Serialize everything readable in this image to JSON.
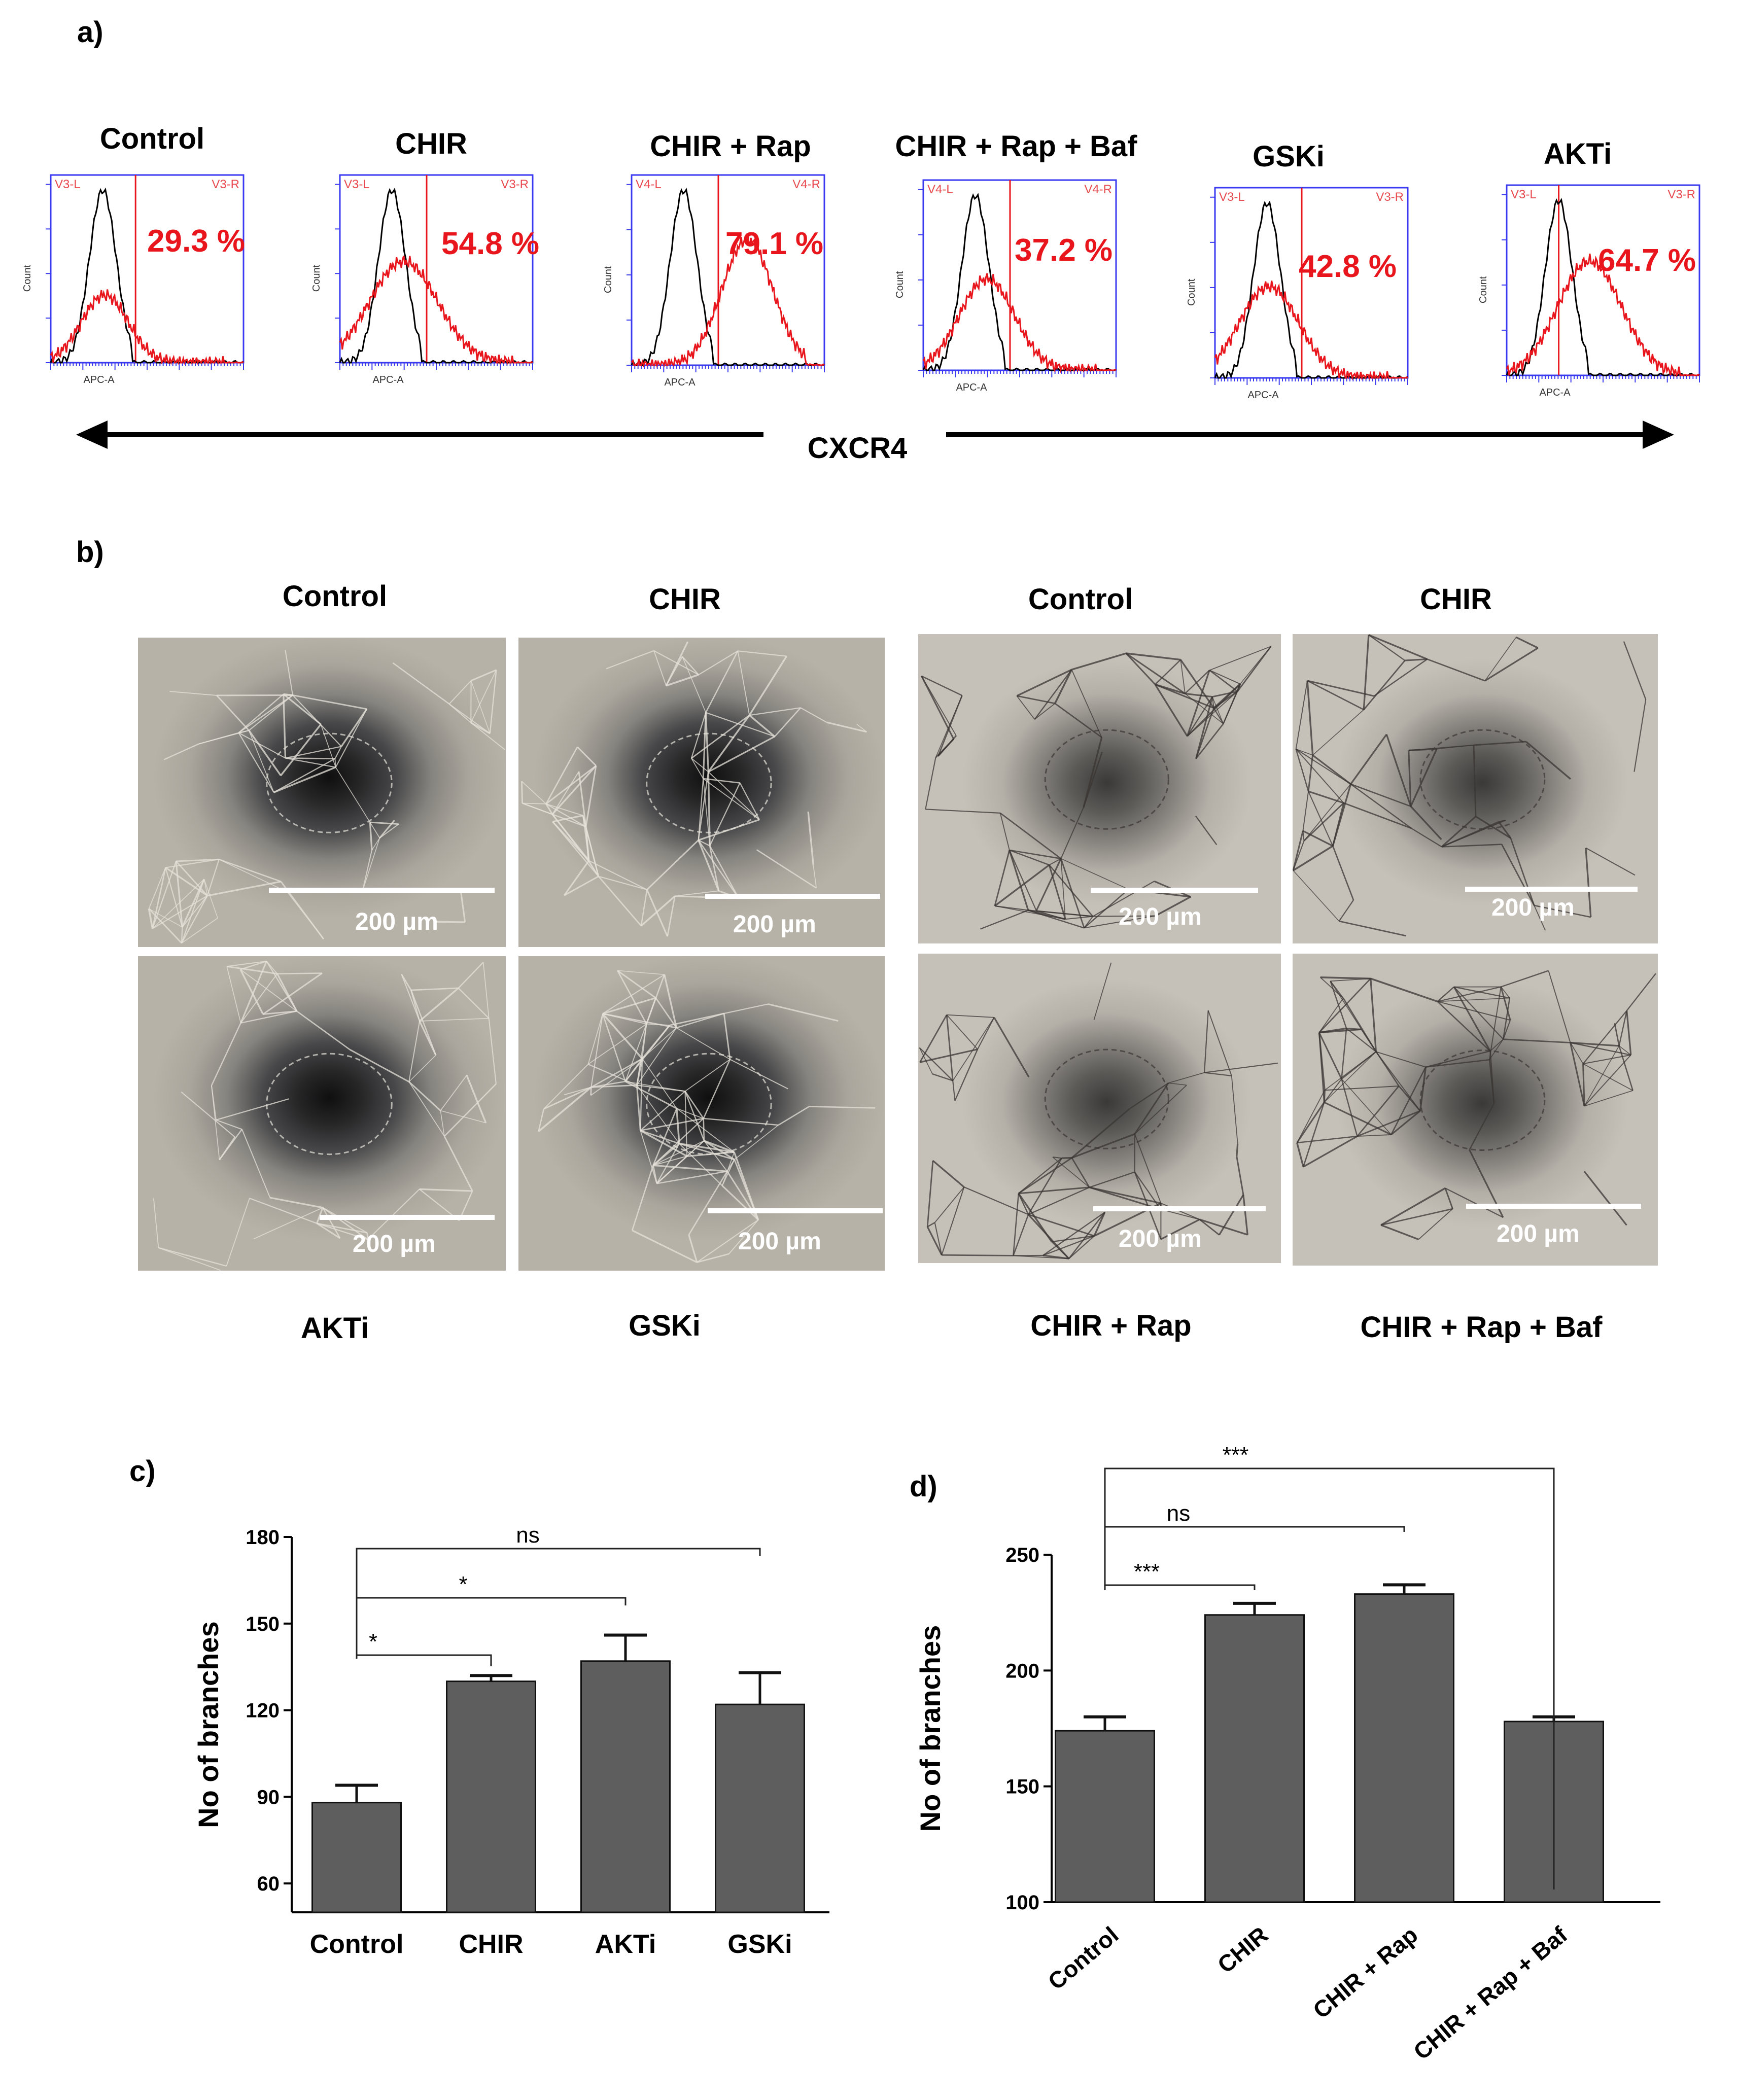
{
  "panel_a": {
    "label": "a)",
    "axis_caption": "CXCR4",
    "x_axis_label": "APC-A",
    "y_axis_label": "Count",
    "histograms": [
      {
        "title": "Control",
        "percent": "29.3 %",
        "gate_left": "V3-L",
        "gate_right": "V3-R"
      },
      {
        "title": "CHIR",
        "percent": "54.8 %",
        "gate_left": "V3-L",
        "gate_right": "V3-R"
      },
      {
        "title": "CHIR + Rap",
        "percent": "79.1 %",
        "gate_left": "V4-L",
        "gate_right": "V4-R"
      },
      {
        "title": "CHIR + Rap + Baf",
        "percent": "37.2 %",
        "gate_left": "V4-L",
        "gate_right": "V4-R"
      },
      {
        "title": "GSKi",
        "percent": "42.8 %",
        "gate_left": "V3-L",
        "gate_right": "V3-R"
      },
      {
        "title": "AKTi",
        "percent": "64.7 %",
        "gate_left": "V3-L",
        "gate_right": "V3-R"
      }
    ],
    "colors": {
      "control_trace": "#000000",
      "treated_trace": "#e8161c",
      "frame": "#3a3af0"
    }
  },
  "panel_b": {
    "label": "b)",
    "scale_bar": "200 µm",
    "top_titles": [
      "Control",
      "CHIR",
      "Control",
      "CHIR"
    ],
    "bottom_titles": [
      "AKTi",
      "GSKi",
      "CHIR + Rap",
      "CHIR + Rap + Baf"
    ]
  },
  "chart_data": [
    {
      "panel": "c)",
      "type": "bar",
      "categories": [
        "Control",
        "CHIR",
        "AKTi",
        "GSKi"
      ],
      "values": [
        88,
        130,
        137,
        122
      ],
      "errors": [
        6,
        2,
        9,
        11
      ],
      "ylabel": "No of branches",
      "ylim": [
        50,
        180
      ],
      "yticks": [
        60,
        90,
        120,
        150,
        180
      ],
      "significance": [
        {
          "from": "Control",
          "to": "CHIR",
          "label": "*"
        },
        {
          "from": "Control",
          "to": "AKTi",
          "label": "*"
        },
        {
          "from": "Control",
          "to": "GSKi",
          "label": "ns"
        }
      ],
      "bar_color": "#5e5e5e"
    },
    {
      "panel": "d)",
      "type": "bar",
      "categories": [
        "Control",
        "CHIR",
        "CHIR + Rap",
        "CHIR + Rap + Baf"
      ],
      "values": [
        174,
        224,
        233,
        178
      ],
      "errors": [
        6,
        5,
        4,
        2
      ],
      "ylabel": "No of branches",
      "ylim": [
        100,
        250
      ],
      "yticks": [
        100,
        150,
        200,
        250
      ],
      "significance": [
        {
          "from": "Control",
          "to": "CHIR",
          "label": "***"
        },
        {
          "from": "Control",
          "to": "CHIR + Rap",
          "label": "ns"
        },
        {
          "from": "Control",
          "to": "CHIR + Rap + Baf",
          "label": "***"
        }
      ],
      "bar_color": "#5e5e5e"
    }
  ]
}
